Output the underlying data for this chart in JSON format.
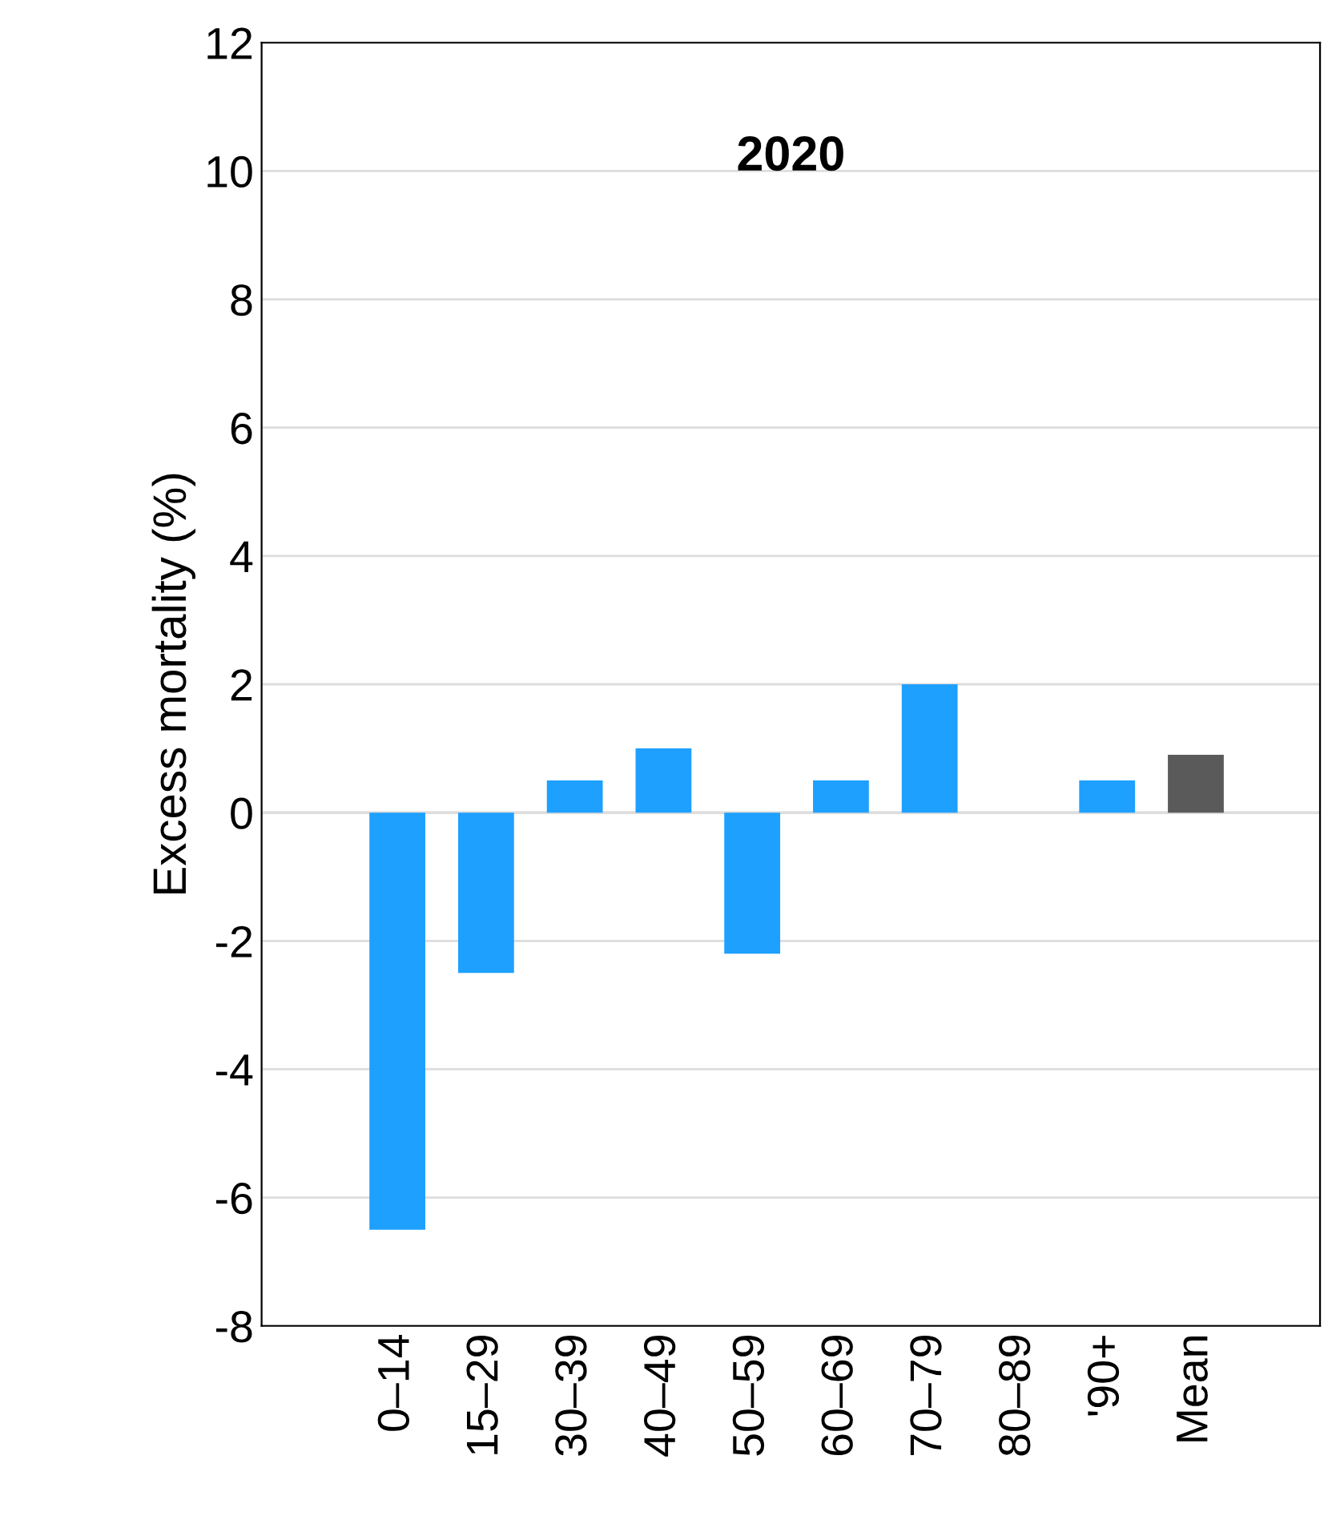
{
  "chart_data": {
    "type": "bar",
    "title": "2020",
    "ylabel": "Excess mortality (%)",
    "categories": [
      "0–14",
      "15–29",
      "30–39",
      "40–49",
      "50–59",
      "60–69",
      "70–79",
      "80–89",
      "'90+",
      "Mean"
    ],
    "values": [
      -6.5,
      -2.5,
      0.5,
      1.0,
      -2.2,
      0.5,
      2.0,
      0,
      0.5,
      0.9
    ],
    "colors": [
      "#1ea0ff",
      "#1ea0ff",
      "#1ea0ff",
      "#1ea0ff",
      "#1ea0ff",
      "#1ea0ff",
      "#1ea0ff",
      "#1ea0ff",
      "#1ea0ff",
      "#5a5a5a"
    ],
    "ylim": [
      -8,
      12
    ],
    "yticks": [
      -8,
      -6,
      -4,
      -2,
      0,
      2,
      4,
      6,
      8,
      10,
      12
    ],
    "grid": "y"
  }
}
